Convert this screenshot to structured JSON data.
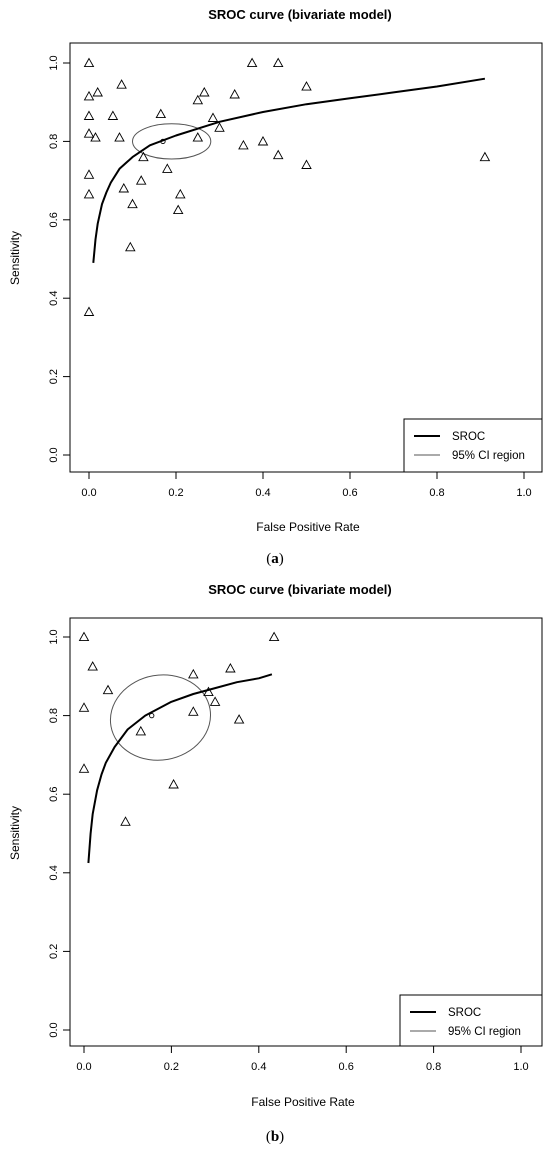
{
  "chart_data": [
    {
      "type": "scatter",
      "caption_letter": "a",
      "title": "SROC curve (bivariate model)",
      "xlabel": "False Positive Rate",
      "ylabel": "Sensitivity",
      "xlim": [
        0,
        1
      ],
      "ylim": [
        0,
        1
      ],
      "xticks": [
        "0.0",
        "0.2",
        "0.4",
        "0.6",
        "0.8",
        "1.0"
      ],
      "yticks": [
        "0.0",
        "0.2",
        "0.4",
        "0.6",
        "0.8",
        "1.0"
      ],
      "grid": false,
      "legend": {
        "position": "bottom-right",
        "entries": [
          "SROC",
          "95% CI region"
        ],
        "colors": [
          "#000000",
          "#555555"
        ]
      },
      "points": [
        [
          0.0,
          1.0
        ],
        [
          0.0,
          0.915
        ],
        [
          0.02,
          0.925
        ],
        [
          0.0,
          0.865
        ],
        [
          0.075,
          0.945
        ],
        [
          0.055,
          0.865
        ],
        [
          0.165,
          0.87
        ],
        [
          0.0,
          0.82
        ],
        [
          0.015,
          0.81
        ],
        [
          0.07,
          0.81
        ],
        [
          0.125,
          0.76
        ],
        [
          0.18,
          0.73
        ],
        [
          0.265,
          0.925
        ],
        [
          0.25,
          0.905
        ],
        [
          0.335,
          0.92
        ],
        [
          0.375,
          1.0
        ],
        [
          0.435,
          1.0
        ],
        [
          0.5,
          0.94
        ],
        [
          0.285,
          0.86
        ],
        [
          0.3,
          0.835
        ],
        [
          0.25,
          0.81
        ],
        [
          0.355,
          0.79
        ],
        [
          0.4,
          0.8
        ],
        [
          0.435,
          0.765
        ],
        [
          0.5,
          0.74
        ],
        [
          0.91,
          0.76
        ],
        [
          0.0,
          0.715
        ],
        [
          0.0,
          0.665
        ],
        [
          0.08,
          0.68
        ],
        [
          0.12,
          0.7
        ],
        [
          0.21,
          0.665
        ],
        [
          0.1,
          0.64
        ],
        [
          0.205,
          0.625
        ],
        [
          0.095,
          0.53
        ],
        [
          0.0,
          0.365
        ]
      ],
      "summary_point": [
        0.17,
        0.8
      ],
      "sroc_curve": {
        "x": [
          0.01,
          0.015,
          0.02,
          0.03,
          0.04,
          0.05,
          0.07,
          0.1,
          0.14,
          0.2,
          0.3,
          0.4,
          0.5,
          0.6,
          0.7,
          0.8,
          0.91
        ],
        "y": [
          0.49,
          0.55,
          0.59,
          0.64,
          0.67,
          0.695,
          0.73,
          0.76,
          0.79,
          0.815,
          0.85,
          0.875,
          0.895,
          0.91,
          0.925,
          0.94,
          0.96
        ]
      },
      "ci_region": {
        "center": [
          0.19,
          0.8
        ],
        "rx": 0.09,
        "ry": 0.045,
        "angle": 0
      }
    },
    {
      "type": "scatter",
      "caption_letter": "b",
      "title": "SROC curve (bivariate model)",
      "xlabel": "False Positive Rate",
      "ylabel": "Sensitivity",
      "xlim": [
        0,
        1
      ],
      "ylim": [
        0,
        1
      ],
      "xticks": [
        "0.0",
        "0.2",
        "0.4",
        "0.6",
        "0.8",
        "1.0"
      ],
      "yticks": [
        "0.0",
        "0.2",
        "0.4",
        "0.6",
        "0.8",
        "1.0"
      ],
      "grid": false,
      "legend": {
        "position": "bottom-right",
        "entries": [
          "SROC",
          "95% CI region"
        ],
        "colors": [
          "#000000",
          "#555555"
        ]
      },
      "points": [
        [
          0.0,
          1.0
        ],
        [
          0.02,
          0.925
        ],
        [
          0.055,
          0.865
        ],
        [
          0.0,
          0.82
        ],
        [
          0.25,
          0.905
        ],
        [
          0.335,
          0.92
        ],
        [
          0.435,
          1.0
        ],
        [
          0.285,
          0.86
        ],
        [
          0.3,
          0.835
        ],
        [
          0.25,
          0.81
        ],
        [
          0.355,
          0.79
        ],
        [
          0.13,
          0.76
        ],
        [
          0.0,
          0.665
        ],
        [
          0.205,
          0.625
        ],
        [
          0.095,
          0.53
        ]
      ],
      "summary_point": [
        0.155,
        0.8
      ],
      "sroc_curve": {
        "x": [
          0.01,
          0.015,
          0.02,
          0.03,
          0.04,
          0.05,
          0.07,
          0.1,
          0.14,
          0.2,
          0.25,
          0.3,
          0.35,
          0.4,
          0.43
        ],
        "y": [
          0.425,
          0.5,
          0.55,
          0.61,
          0.65,
          0.68,
          0.72,
          0.765,
          0.8,
          0.835,
          0.855,
          0.87,
          0.885,
          0.895,
          0.905
        ]
      },
      "ci_region": {
        "center": [
          0.175,
          0.795
        ],
        "rx": 0.115,
        "ry": 0.108,
        "angle": -10
      }
    }
  ]
}
